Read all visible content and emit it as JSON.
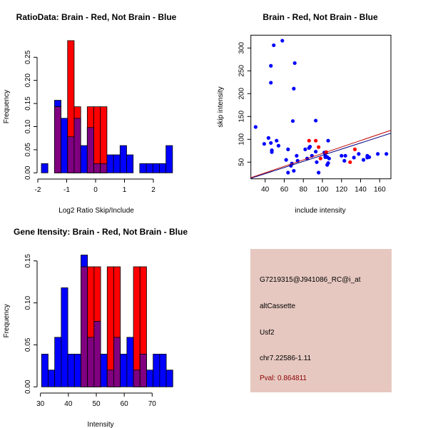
{
  "colors": {
    "brain": "#ff0000",
    "not_brain": "#0000ff",
    "overlap": "#800080",
    "info_bg": "#e6c8c0",
    "pval": "#8b0000"
  },
  "chart_data": [
    {
      "type": "bar",
      "title": "RatioData: Brain - Red, Not Brain - Blue",
      "xlabel": "Log2 Ratio Skip/Include",
      "ylabel": "Frequency",
      "xlim": [
        -2,
        2.7
      ],
      "ylim": [
        0,
        0.286
      ],
      "xticks": [
        -2,
        -1,
        0,
        1,
        2
      ],
      "yticks": [
        "0.00",
        "0.05",
        "0.10",
        "0.15",
        "0.20",
        "0.25"
      ],
      "bin_start": -1.877,
      "bin_width": 0.227,
      "series": [
        {
          "name": "Not Brain",
          "color": "blue",
          "values": [
            0.02,
            0,
            0.157,
            0.118,
            0.078,
            0.118,
            0.059,
            0.098,
            0.02,
            0.02,
            0.039,
            0.039,
            0.059,
            0.039,
            0,
            0.02,
            0.02,
            0.02,
            0.02,
            0.059
          ]
        },
        {
          "name": "Brain",
          "color": "red",
          "values": [
            0,
            0,
            0.143,
            0,
            0.286,
            0.143,
            0,
            0.143,
            0.143,
            0.143,
            0,
            0,
            0,
            0,
            0,
            0,
            0,
            0,
            0,
            0
          ]
        }
      ]
    },
    {
      "type": "scatter",
      "title": "Brain - Red, Not Brain - Blue",
      "xlabel": "include intensity",
      "ylabel": "skip intensity",
      "xlim": [
        25,
        172
      ],
      "ylim": [
        14,
        328
      ],
      "xticks": [
        40,
        60,
        80,
        100,
        120,
        140,
        160
      ],
      "yticks": [
        50,
        100,
        150,
        200,
        250,
        300
      ],
      "series": [
        {
          "name": "Not Brain",
          "color": "blue",
          "points": [
            [
              30,
              127
            ],
            [
              39,
              90
            ],
            [
              43.5,
              103
            ],
            [
              46,
              92
            ],
            [
              47,
              76
            ],
            [
              47,
              72
            ],
            [
              52,
              97
            ],
            [
              54,
              86
            ],
            [
              46,
              224
            ],
            [
              46,
              261
            ],
            [
              49,
              306
            ],
            [
              58,
              316
            ],
            [
              71,
              267
            ],
            [
              70,
              211
            ],
            [
              69,
              140
            ],
            [
              93,
              141
            ],
            [
              62,
              55
            ],
            [
              64,
              78
            ],
            [
              64,
              27
            ],
            [
              67,
              42
            ],
            [
              68,
              47
            ],
            [
              70,
              31
            ],
            [
              73,
              64
            ],
            [
              74,
              53
            ],
            [
              82,
              78
            ],
            [
              84,
              58
            ],
            [
              86,
              81
            ],
            [
              87,
              84
            ],
            [
              89,
              64
            ],
            [
              93,
              73
            ],
            [
              94,
              50
            ],
            [
              96,
              27
            ],
            [
              102,
              71
            ],
            [
              103,
              64
            ],
            [
              103,
              61
            ],
            [
              105,
              61
            ],
            [
              106,
              97
            ],
            [
              105,
              44
            ],
            [
              106,
              48
            ],
            [
              107,
              58
            ],
            [
              120,
              64
            ],
            [
              123,
              53
            ],
            [
              124,
              64
            ],
            [
              133,
              60
            ],
            [
              138,
              68
            ],
            [
              143,
              55
            ],
            [
              147,
              64
            ],
            [
              147,
              60
            ],
            [
              149,
              61
            ],
            [
              158,
              68
            ],
            [
              167,
              68
            ]
          ]
        },
        {
          "name": "Brain",
          "color": "red",
          "points": [
            [
              86,
              97
            ],
            [
              93,
              97
            ],
            [
              96,
              83
            ],
            [
              98,
              58
            ],
            [
              104,
              72
            ],
            [
              129,
              50
            ],
            [
              134,
              78
            ]
          ]
        }
      ],
      "fit_lines": [
        {
          "name": "Brain",
          "color": "#c00000",
          "intercept": -1.7,
          "slope": 0.707
        },
        {
          "name": "Not Brain",
          "color": "#000080",
          "intercept": -2.2,
          "slope": 0.673
        }
      ]
    },
    {
      "type": "bar",
      "title": "Gene Itensity: Brain - Red, Not Brain - Blue",
      "xlabel": "Intensity",
      "ylabel": "Frequency",
      "xlim": [
        30,
        78
      ],
      "ylim": [
        0,
        0.157
      ],
      "xticks": [
        30,
        40,
        50,
        60,
        70
      ],
      "yticks": [
        "0.00",
        "0.05",
        "0.10",
        "0.15"
      ],
      "bin_start": 30.4,
      "bin_width": 2.35,
      "series": [
        {
          "name": "Not Brain",
          "color": "blue",
          "values": [
            0.039,
            0.02,
            0.059,
            0.118,
            0.039,
            0.039,
            0.157,
            0.059,
            0.078,
            0.039,
            0.02,
            0.059,
            0.039,
            0.059,
            0.02,
            0.039,
            0.02,
            0.039,
            0.039,
            0.02
          ]
        },
        {
          "name": "Brain",
          "color": "red",
          "values": [
            0,
            0,
            0,
            0,
            0,
            0,
            0.143,
            0.143,
            0.143,
            0,
            0.143,
            0.143,
            0,
            0,
            0.143,
            0.143,
            0,
            0,
            0,
            0
          ]
        }
      ]
    }
  ],
  "info": {
    "probe": "G7219315@J941086_RC@i_at",
    "event_type": "altCassette",
    "gene": "Usf2",
    "location": "chr7.22586-1.11",
    "pval": "Pval: 0.864811"
  }
}
